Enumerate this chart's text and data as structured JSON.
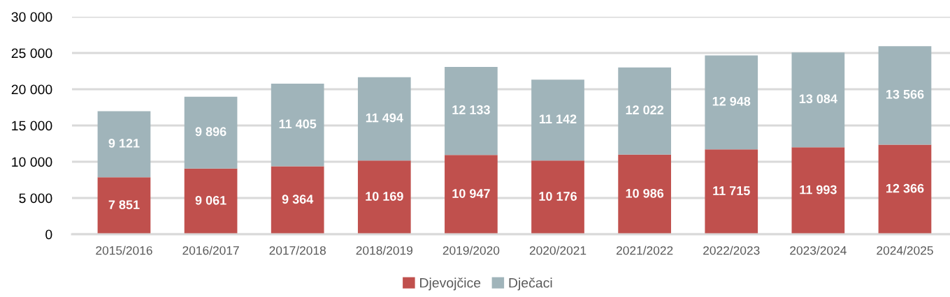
{
  "chart_data": {
    "type": "bar",
    "stacked": true,
    "categories": [
      "2015/2016",
      "2016/2017",
      "2017/2018",
      "2018/2019",
      "2019/2020",
      "2020/2021",
      "2021/2022",
      "2022/2023",
      "2023/2024",
      "2024/2025"
    ],
    "series": [
      {
        "name": "Djevojčice",
        "color": "#c0504d",
        "values": [
          7851,
          9061,
          9364,
          10169,
          10947,
          10176,
          10986,
          11715,
          11993,
          12366
        ],
        "value_labels": [
          "7 851",
          "9 061",
          "9 364",
          "10 169",
          "10 947",
          "10 176",
          "10 986",
          "11 715",
          "11 993",
          "12 366"
        ]
      },
      {
        "name": "Dječaci",
        "color": "#a0b4ba",
        "values": [
          9121,
          9896,
          11405,
          11494,
          12133,
          11142,
          12022,
          12948,
          13084,
          13566
        ],
        "value_labels": [
          "9 121",
          "9 896",
          "11 405",
          "11 494",
          "12 133",
          "11 142",
          "12 022",
          "12 948",
          "13 084",
          "13 566"
        ]
      }
    ],
    "ylim": [
      0,
      30000
    ],
    "yticks": [
      {
        "value": 0,
        "label": "0"
      },
      {
        "value": 5000,
        "label": "5 000"
      },
      {
        "value": 10000,
        "label": "10 000"
      },
      {
        "value": 15000,
        "label": "15 000"
      },
      {
        "value": 20000,
        "label": "20 000"
      },
      {
        "value": 25000,
        "label": "25 000"
      },
      {
        "value": 30000,
        "label": "30 000"
      }
    ],
    "grid": "y",
    "legend": "bottom"
  }
}
